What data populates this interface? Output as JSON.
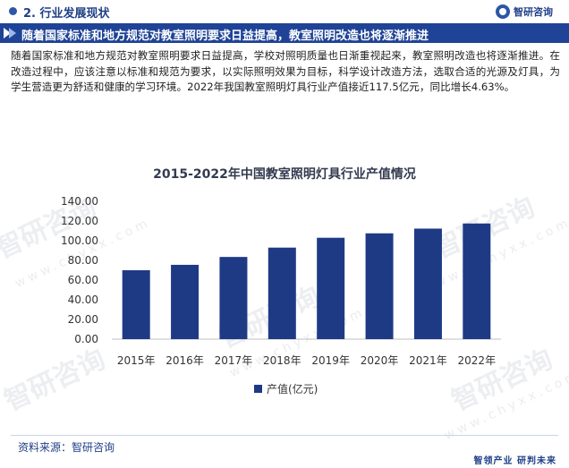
{
  "header": {
    "section_title": "2. 行业发展现状",
    "brand": "智研咨询"
  },
  "banner": {
    "text": "随着国家标准和地方规范对教室照明要求日益提高，教室照明改造也将逐渐推进"
  },
  "paragraph": "随着国家标准和地方规范对教室照明要求日益提高，学校对照明质量也日渐重视起来，教室照明改造也将逐渐推进。在改造过程中，应该注意以标准和规范为要求，以实际照明效果为目标，科学设计改造方法，选取合适的光源及灯具，为学生营造更为舒适和健康的学习环境。2022年我国教室照明灯具行业产值接近117.5亿元，同比增长4.63%。",
  "watermark": {
    "text": "智研咨询",
    "sub": "www.chyxx.com"
  },
  "chart_data": {
    "type": "bar",
    "title": "2015-2022年中国教室照明灯具行业产值情况",
    "categories": [
      "2015年",
      "2016年",
      "2017年",
      "2018年",
      "2019年",
      "2020年",
      "2021年",
      "2022年"
    ],
    "series": [
      {
        "name": "产值(亿元)",
        "values": [
          70.0,
          75.5,
          83.5,
          93.0,
          103.0,
          107.5,
          112.3,
          117.5
        ]
      }
    ],
    "yticks": [
      "0.00",
      "20.00",
      "40.00",
      "60.00",
      "80.00",
      "100.00",
      "120.00",
      "140.00"
    ],
    "ylim": [
      0,
      140
    ],
    "grid": false,
    "legend_position": "bottom",
    "bar_color": "#1f3a85"
  },
  "footer": {
    "source": "资料来源：智研咨询",
    "slogan": "智领产业  研判未来"
  }
}
